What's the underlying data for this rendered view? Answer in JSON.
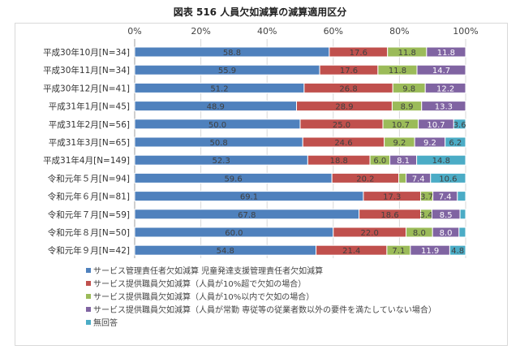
{
  "chart_data": {
    "type": "bar",
    "orientation": "horizontal-stacked-100",
    "title": "図表 516 人員欠如減算の減算適用区分",
    "xlim": [
      0,
      100
    ],
    "xticks": [
      "0%",
      "20%",
      "40%",
      "60%",
      "80%",
      "100%"
    ],
    "grid": true,
    "legend_position": "bottom-left",
    "categories": [
      "平成30年10月[N=34]",
      "平成30年11月[N=34]",
      "平成30年12月[N=41]",
      "平成31年1月[N=45]",
      "平成31年2月[N=56]",
      "平成31年3月[N=65]",
      "平成31年4月[N=149]",
      "令和元年５月[N=94]",
      "令和元年６月[N=81]",
      "令和元年７月[N=59]",
      "令和元年８月[N=50]",
      "令和元年９月[N=42]"
    ],
    "series": [
      {
        "name": "サービス管理責任者欠如減算 児童発達支援管理責任者欠如減算",
        "color": "#4f81bd",
        "values": [
          58.8,
          55.9,
          51.2,
          48.9,
          50.0,
          50.8,
          52.3,
          59.6,
          69.1,
          67.8,
          60.0,
          54.8
        ]
      },
      {
        "name": "サービス提供職員欠如減算（人員が10%超で欠如の場合）",
        "color": "#c0504d",
        "values": [
          17.6,
          17.6,
          26.8,
          28.9,
          25.0,
          24.6,
          18.8,
          20.2,
          17.3,
          18.6,
          22.0,
          21.4
        ]
      },
      {
        "name": "サービス提供職員欠如減算（人員が10%以内で欠如の場合）",
        "color": "#9bbb59",
        "values": [
          11.8,
          11.8,
          9.8,
          8.9,
          10.7,
          9.2,
          6.0,
          2.2,
          3.7,
          3.4,
          8.0,
          7.1
        ]
      },
      {
        "name": "サービス提供職員欠如減算（人員が常勤 専従等の従業者数以外の要件を満たしていない場合）",
        "color": "#8064a2",
        "values": [
          11.8,
          14.7,
          12.2,
          13.3,
          10.7,
          9.2,
          8.1,
          7.4,
          7.4,
          8.5,
          8.0,
          11.9
        ]
      },
      {
        "name": "無回答",
        "color": "#4bacc6",
        "values": [
          0,
          0,
          0,
          0,
          3.6,
          6.2,
          14.8,
          10.6,
          2.5,
          1.7,
          2.0,
          4.8
        ]
      }
    ],
    "label_min": 3
  }
}
